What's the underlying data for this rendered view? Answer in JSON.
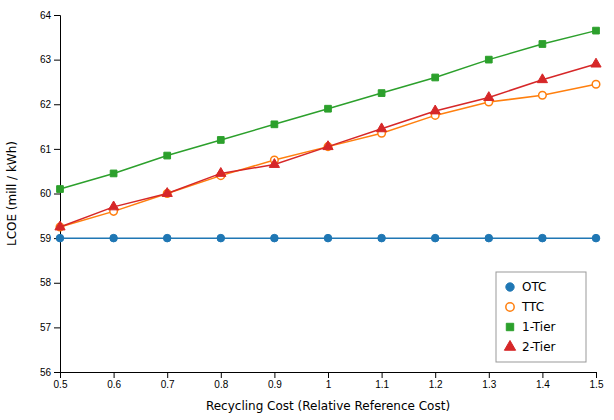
{
  "chart_data": {
    "type": "line",
    "x": [
      0.5,
      0.6,
      0.7,
      0.8,
      0.9,
      1.0,
      1.1,
      1.2,
      1.3,
      1.4,
      1.5
    ],
    "series": [
      {
        "name": "OTC",
        "marker": "circle",
        "values": [
          59.0,
          59.0,
          59.0,
          59.0,
          59.0,
          59.0,
          59.0,
          59.0,
          59.0,
          59.0,
          59.0
        ]
      },
      {
        "name": "TTC",
        "marker": "open-circle",
        "values": [
          59.25,
          59.6,
          60.0,
          60.4,
          60.75,
          61.05,
          61.35,
          61.75,
          62.05,
          62.2,
          62.45
        ]
      },
      {
        "name": "1-Tier",
        "marker": "square",
        "values": [
          60.1,
          60.45,
          60.85,
          61.2,
          61.55,
          61.9,
          62.25,
          62.6,
          63.0,
          63.35,
          63.65
        ]
      },
      {
        "name": "2-Tier",
        "marker": "triangle",
        "values": [
          59.25,
          59.7,
          60.0,
          60.45,
          60.65,
          61.05,
          61.45,
          61.85,
          62.15,
          62.55,
          62.9
        ]
      }
    ],
    "xlabel": "Recycling Cost (Relative Reference Cost)",
    "ylabel": "LCOE (mill / kWh)",
    "xlim": [
      0.5,
      1.5
    ],
    "ylim": [
      56,
      64
    ],
    "xticks": [
      0.5,
      0.6,
      0.7,
      0.8,
      0.9,
      1.0,
      1.1,
      1.2,
      1.3,
      1.4,
      1.5
    ],
    "yticks": [
      56,
      57,
      58,
      59,
      60,
      61,
      62,
      63,
      64
    ],
    "legend": "lower right"
  }
}
